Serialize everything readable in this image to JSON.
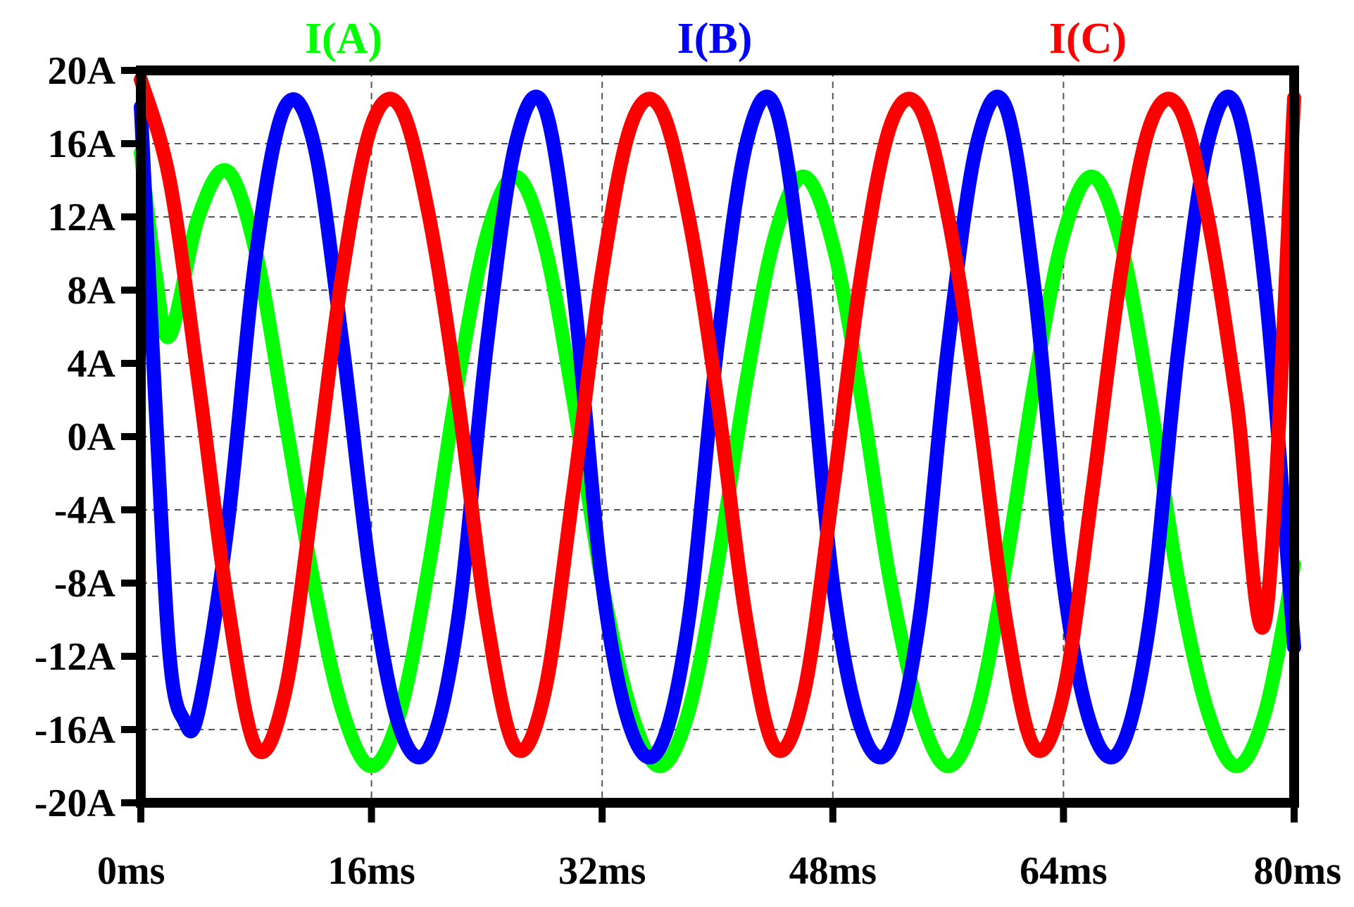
{
  "chart_data": {
    "type": "line",
    "title": "",
    "xlabel": "",
    "ylabel": "",
    "xlim": [
      0,
      80
    ],
    "ylim": [
      -20,
      20
    ],
    "grid": true,
    "legend_position": "top",
    "x_ticks": [
      "0ms",
      "16ms",
      "32ms",
      "48ms",
      "64ms",
      "80ms"
    ],
    "y_ticks": [
      "20A",
      "16A",
      "12A",
      "8A",
      "4A",
      "0A",
      "-4A",
      "-8A",
      "-12A",
      "-16A",
      "-20A"
    ],
    "x_tick_values": [
      0,
      16,
      32,
      48,
      64,
      80
    ],
    "y_tick_values": [
      20,
      16,
      12,
      8,
      4,
      0,
      -4,
      -8,
      -12,
      -16,
      -20
    ],
    "x_unit": "ms",
    "y_unit": "A",
    "series": [
      {
        "name": "I(A)",
        "color": "#00ff00",
        "x": [
          0,
          1,
          2,
          4,
          6,
          8,
          10,
          12,
          14,
          16,
          18,
          20,
          22,
          24,
          26,
          28,
          30,
          32,
          34,
          36,
          38,
          40,
          42,
          44,
          46,
          48,
          50,
          52,
          54,
          56,
          58,
          60,
          62,
          64,
          66,
          68,
          70,
          72,
          74,
          76,
          78,
          80
        ],
        "y": [
          15.5,
          9,
          5.5,
          12,
          14.5,
          10,
          1,
          -8,
          -15,
          -18,
          -15,
          -7,
          3,
          11,
          14.2,
          10.5,
          2,
          -8,
          -15,
          -18,
          -15,
          -7,
          3,
          11,
          14.2,
          10.5,
          2,
          -8,
          -15,
          -18,
          -15,
          -7,
          3,
          11,
          14.2,
          10.5,
          2,
          -8,
          -15,
          -18,
          -15,
          -7
        ]
      },
      {
        "name": "I(B)",
        "color": "#0000ff",
        "x": [
          0,
          1,
          2,
          3,
          4,
          6,
          8,
          10,
          12,
          14,
          16,
          18,
          20,
          22,
          24,
          26,
          28,
          30,
          32,
          34,
          36,
          38,
          40,
          42,
          44,
          46,
          48,
          50,
          52,
          54,
          56,
          58,
          60,
          62,
          64,
          66,
          68,
          70,
          72,
          74,
          76,
          78,
          80
        ],
        "y": [
          18,
          2,
          -12,
          -15.5,
          -15,
          -5,
          10,
          18,
          16,
          5,
          -8,
          -16,
          -17,
          -10,
          5,
          16,
          18,
          8,
          -8,
          -16,
          -17,
          -10,
          5,
          16,
          18,
          8,
          -8,
          -16,
          -17,
          -10,
          5,
          16,
          18,
          8,
          -8,
          -16,
          -17,
          -10,
          5,
          16,
          18,
          8,
          -11.5
        ]
      },
      {
        "name": "I(C)",
        "color": "#ff0000",
        "x": [
          0,
          2,
          4,
          6,
          8,
          10,
          12,
          14,
          16,
          18,
          20,
          22,
          24,
          26,
          28,
          30,
          32,
          34,
          36,
          38,
          40,
          42,
          44,
          46,
          48,
          50,
          52,
          54,
          56,
          58,
          60,
          62,
          64,
          66,
          68,
          70,
          72,
          74,
          76,
          78,
          80
        ],
        "y": [
          19.5,
          14,
          3,
          -9,
          -17,
          -14,
          -3,
          9,
          17,
          18,
          12,
          2,
          -10,
          -17,
          -14,
          -3,
          9,
          17,
          18,
          12,
          2,
          -10,
          -17,
          -14,
          -3,
          9,
          17,
          18,
          12,
          2,
          -10,
          -17,
          -14,
          -3,
          9,
          17,
          18,
          12,
          2,
          -10,
          18.5
        ]
      }
    ]
  }
}
